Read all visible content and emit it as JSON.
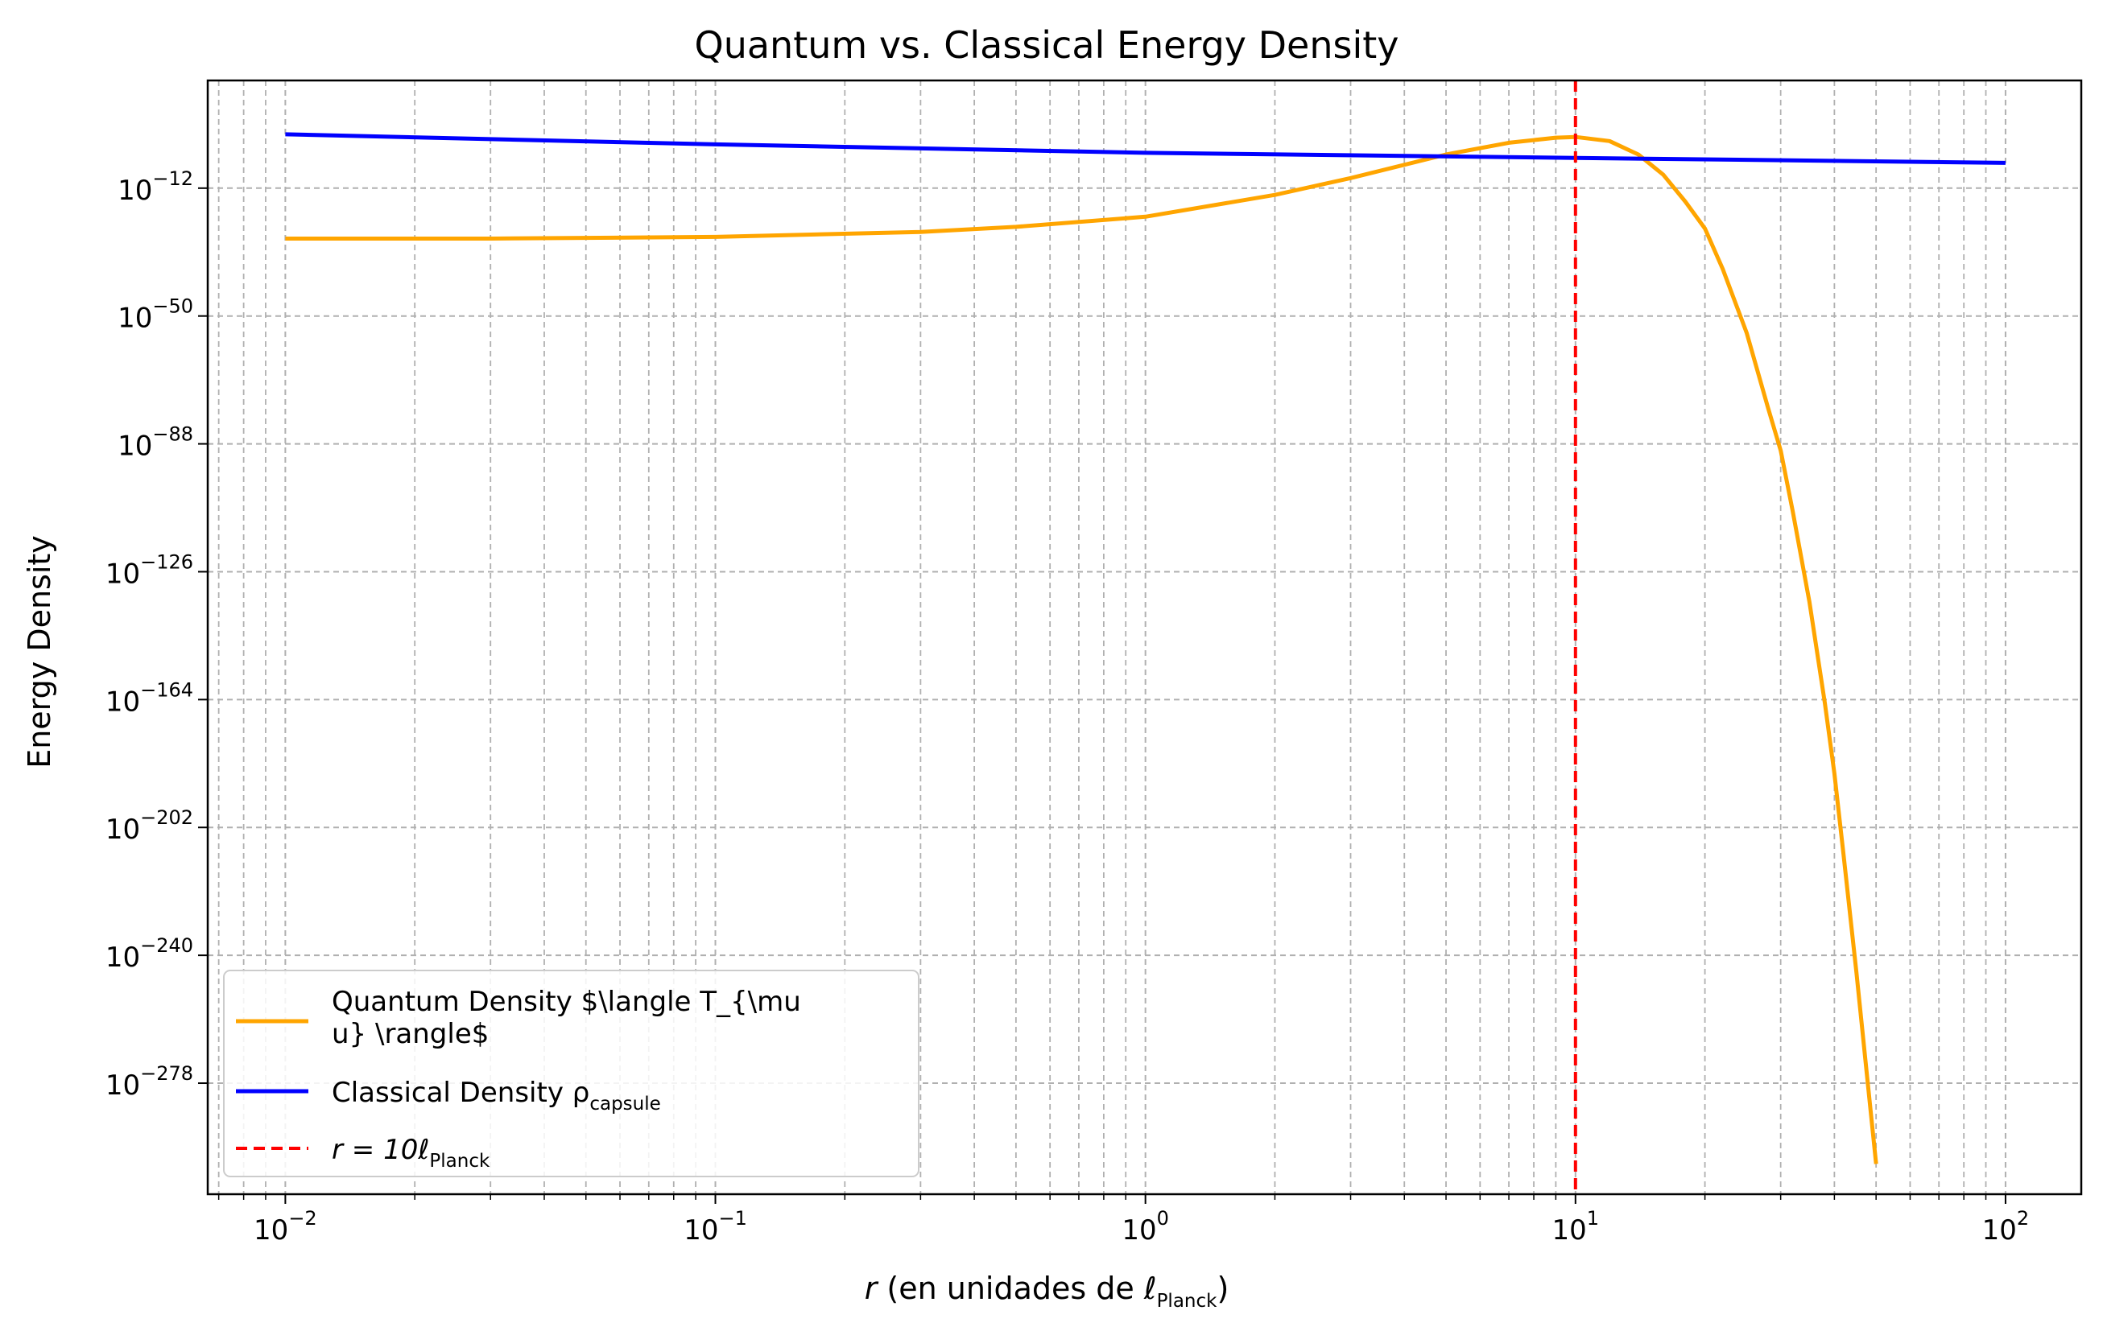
{
  "chart_data": {
    "type": "line",
    "title": "Quantum vs. Classical Energy Density",
    "xlabel": {
      "italic": "r",
      "text": " (en unidades de ",
      "symbol": "ℓ",
      "subscript": "Planck",
      "close": ")"
    },
    "ylabel": "Energy Density",
    "x_scale": "log",
    "y_scale": "log",
    "xlim": [
      0.0066,
      150
    ],
    "ylim_exponent": [
      -311,
      20
    ],
    "grid": {
      "major": true,
      "minor_x": true,
      "style": "dashed",
      "color": "#b0b0b0"
    },
    "x_ticks": [
      {
        "value": 0.01,
        "base": "10",
        "exp": "−2"
      },
      {
        "value": 0.1,
        "base": "10",
        "exp": "−1"
      },
      {
        "value": 1,
        "base": "10",
        "exp": "0"
      },
      {
        "value": 10,
        "base": "10",
        "exp": "1"
      },
      {
        "value": 100,
        "base": "10",
        "exp": "2"
      }
    ],
    "y_ticks": [
      {
        "exponent": -12,
        "base": "10",
        "exp": "−12"
      },
      {
        "exponent": -50,
        "base": "10",
        "exp": "−50"
      },
      {
        "exponent": -88,
        "base": "10",
        "exp": "−88"
      },
      {
        "exponent": -126,
        "base": "10",
        "exp": "−126"
      },
      {
        "exponent": -164,
        "base": "10",
        "exp": "−164"
      },
      {
        "exponent": -202,
        "base": "10",
        "exp": "−202"
      },
      {
        "exponent": -240,
        "base": "10",
        "exp": "−240"
      },
      {
        "exponent": -278,
        "base": "10",
        "exp": "−278"
      }
    ],
    "series": [
      {
        "name": "Quantum Density $\\langle T_{\\mu\nu} \\rangle$",
        "color": "#ffa500",
        "line": "solid",
        "points": [
          [
            0.01,
            -27
          ],
          [
            0.03,
            -27
          ],
          [
            0.1,
            -26.5
          ],
          [
            0.3,
            -25
          ],
          [
            0.5,
            -23.5
          ],
          [
            1,
            -20.5
          ],
          [
            2,
            -14
          ],
          [
            3,
            -9
          ],
          [
            5,
            -2
          ],
          [
            7,
            1.5
          ],
          [
            9,
            3
          ],
          [
            10,
            3.2
          ],
          [
            12,
            2
          ],
          [
            14,
            -2
          ],
          [
            16,
            -8
          ],
          [
            18,
            -16
          ],
          [
            20,
            -24
          ],
          [
            22,
            -36
          ],
          [
            25,
            -55
          ],
          [
            28,
            -77
          ],
          [
            30,
            -90
          ],
          [
            32,
            -108
          ],
          [
            35,
            -135
          ],
          [
            38,
            -165
          ],
          [
            40,
            -186
          ],
          [
            42,
            -210
          ],
          [
            45,
            -245
          ],
          [
            48,
            -280
          ],
          [
            50,
            -302
          ]
        ]
      },
      {
        "name": "Classical Density ρ",
        "name_subscript": "capsule",
        "color": "#0000ff",
        "line": "solid",
        "points": [
          [
            0.01,
            4
          ],
          [
            0.1,
            1
          ],
          [
            1,
            -1.5
          ],
          [
            10,
            -3
          ],
          [
            100,
            -4.5
          ]
        ]
      },
      {
        "name": "r = 10ℓ",
        "name_subscript": "Planck",
        "color": "#ff0000",
        "line": "dashed",
        "vline_x": 10
      }
    ],
    "legend": {
      "position": "lower-left"
    }
  }
}
